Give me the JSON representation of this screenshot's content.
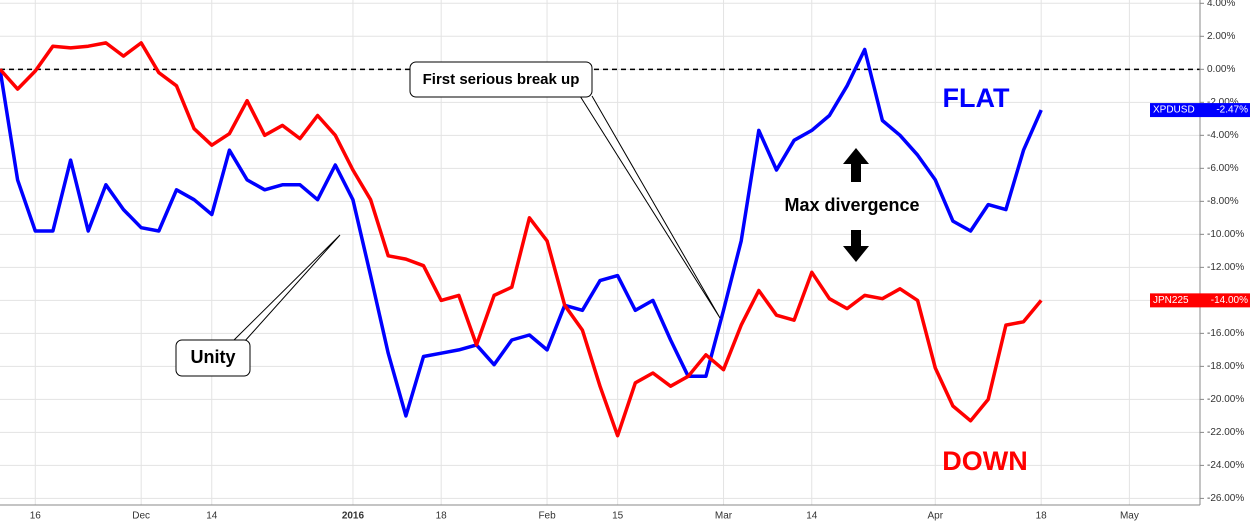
{
  "chart_data": {
    "type": "line",
    "categories": [
      null,
      null,
      "16",
      null,
      null,
      null,
      null,
      null,
      "Dec",
      null,
      null,
      null,
      "14",
      null,
      null,
      null,
      null,
      null,
      null,
      null,
      "2016",
      null,
      null,
      null,
      null,
      "18",
      null,
      null,
      null,
      null,
      null,
      "Feb",
      null,
      null,
      null,
      "15",
      null,
      null,
      null,
      null,
      null,
      "Mar",
      null,
      null,
      null,
      null,
      "14",
      null,
      null,
      null,
      null,
      null,
      null,
      "Apr",
      null,
      null,
      null,
      null,
      null,
      "18",
      null,
      null,
      null,
      null,
      "May",
      null,
      null,
      null,
      null
    ],
    "series": [
      {
        "name": "XPDUSD",
        "color": "#0000ff",
        "values": [
          0,
          -6.7,
          -9.8,
          -9.8,
          -5.5,
          -9.8,
          -7.0,
          -8.5,
          -9.6,
          -9.8,
          -7.3,
          -7.9,
          -8.8,
          -4.9,
          -6.7,
          -7.3,
          -7.0,
          -7.0,
          -7.9,
          -5.8,
          -7.9,
          -12.5,
          -17.2,
          -21.0,
          -17.4,
          -17.2,
          -17.0,
          -16.7,
          -17.9,
          -16.4,
          -16.1,
          -17.0,
          -14.3,
          -14.6,
          -12.8,
          -12.5,
          -14.6,
          -14.0,
          -16.4,
          -18.6,
          -18.6,
          -14.6,
          -10.4,
          -3.7,
          -6.1,
          -4.3,
          -3.7,
          -2.8,
          -1.0,
          1.2,
          -3.1,
          -4.0,
          -5.2,
          -6.7,
          -9.2,
          -9.8,
          -8.2,
          -8.5,
          -4.9,
          -2.47,
          null,
          null,
          null,
          null,
          null,
          null,
          null,
          null,
          null
        ],
        "value_labels": [
          null,
          null,
          null,
          null,
          null,
          null,
          null,
          null,
          null,
          null,
          null,
          null,
          null,
          null,
          null,
          null,
          null,
          null,
          null,
          null,
          null,
          null,
          null,
          null,
          null,
          null,
          null,
          null,
          null,
          null,
          null,
          null,
          null,
          null,
          null,
          null,
          null,
          null,
          null,
          null,
          null,
          null,
          null,
          null,
          null,
          null,
          null,
          null,
          null,
          null,
          null,
          null,
          null,
          null,
          null,
          null,
          null,
          null,
          null,
          "-2.47%",
          null,
          null,
          null,
          null,
          null,
          null,
          null,
          null,
          null
        ]
      },
      {
        "name": "JPN225",
        "color": "#ff0000",
        "values": [
          0,
          -1.2,
          -0.1,
          1.4,
          1.3,
          1.4,
          1.6,
          0.8,
          1.6,
          -0.2,
          -1.0,
          -3.6,
          -4.6,
          -3.9,
          -1.9,
          -4.0,
          -3.4,
          -4.2,
          -2.8,
          -4.0,
          -6.1,
          -7.9,
          -11.3,
          -11.5,
          -11.9,
          -14.0,
          -13.7,
          -16.7,
          -13.7,
          -13.2,
          -9.0,
          -10.4,
          -14.3,
          -15.8,
          -19.2,
          -22.2,
          -19.0,
          -18.4,
          -19.2,
          -18.6,
          -17.3,
          -18.2,
          -15.5,
          -13.4,
          -14.9,
          -15.2,
          -12.3,
          -13.9,
          -14.5,
          -13.7,
          -13.9,
          -13.3,
          -14.0,
          -18.1,
          -20.4,
          -21.3,
          -20.0,
          -15.5,
          -15.3,
          -14.0,
          null,
          null,
          null,
          null,
          null,
          null,
          null,
          null,
          null
        ],
        "value_labels": [
          null,
          null,
          null,
          null,
          null,
          null,
          null,
          null,
          null,
          null,
          null,
          null,
          null,
          null,
          null,
          null,
          null,
          null,
          null,
          null,
          null,
          null,
          null,
          null,
          null,
          null,
          null,
          null,
          null,
          null,
          null,
          null,
          null,
          null,
          null,
          null,
          null,
          null,
          null,
          null,
          null,
          null,
          null,
          null,
          null,
          null,
          null,
          null,
          null,
          null,
          null,
          null,
          null,
          null,
          null,
          null,
          null,
          null,
          null,
          "-14.00%",
          null,
          null,
          null,
          null,
          null,
          null,
          null,
          null,
          null
        ]
      }
    ],
    "ylim": [
      -26.4,
      4.2
    ],
    "yticks": [
      {
        "value": 4,
        "label": "4.00%"
      },
      {
        "value": 2,
        "label": "2.00%"
      },
      {
        "value": 0,
        "label": "0.00%"
      },
      {
        "value": -2,
        "label": "-2.00%"
      },
      {
        "value": -4,
        "label": "-4.00%"
      },
      {
        "value": -6,
        "label": "-6.00%"
      },
      {
        "value": -8,
        "label": "-8.00%"
      },
      {
        "value": -10,
        "label": "-10.00%"
      },
      {
        "value": -12,
        "label": "-12.00%"
      },
      {
        "value": -14,
        "label": "-14.00%"
      },
      {
        "value": -16,
        "label": "-16.00%"
      },
      {
        "value": -18,
        "label": "-18.00%"
      },
      {
        "value": -20,
        "label": "-20.00%"
      },
      {
        "value": -22,
        "label": "-22.00%"
      },
      {
        "value": -24,
        "label": "-24.00%"
      },
      {
        "value": -26,
        "label": "-26.00%"
      }
    ],
    "reference_line": 0,
    "grid": true,
    "annotations": [
      "First serious break up",
      "Unity",
      "Max divergence",
      "FLAT",
      "DOWN"
    ]
  }
}
